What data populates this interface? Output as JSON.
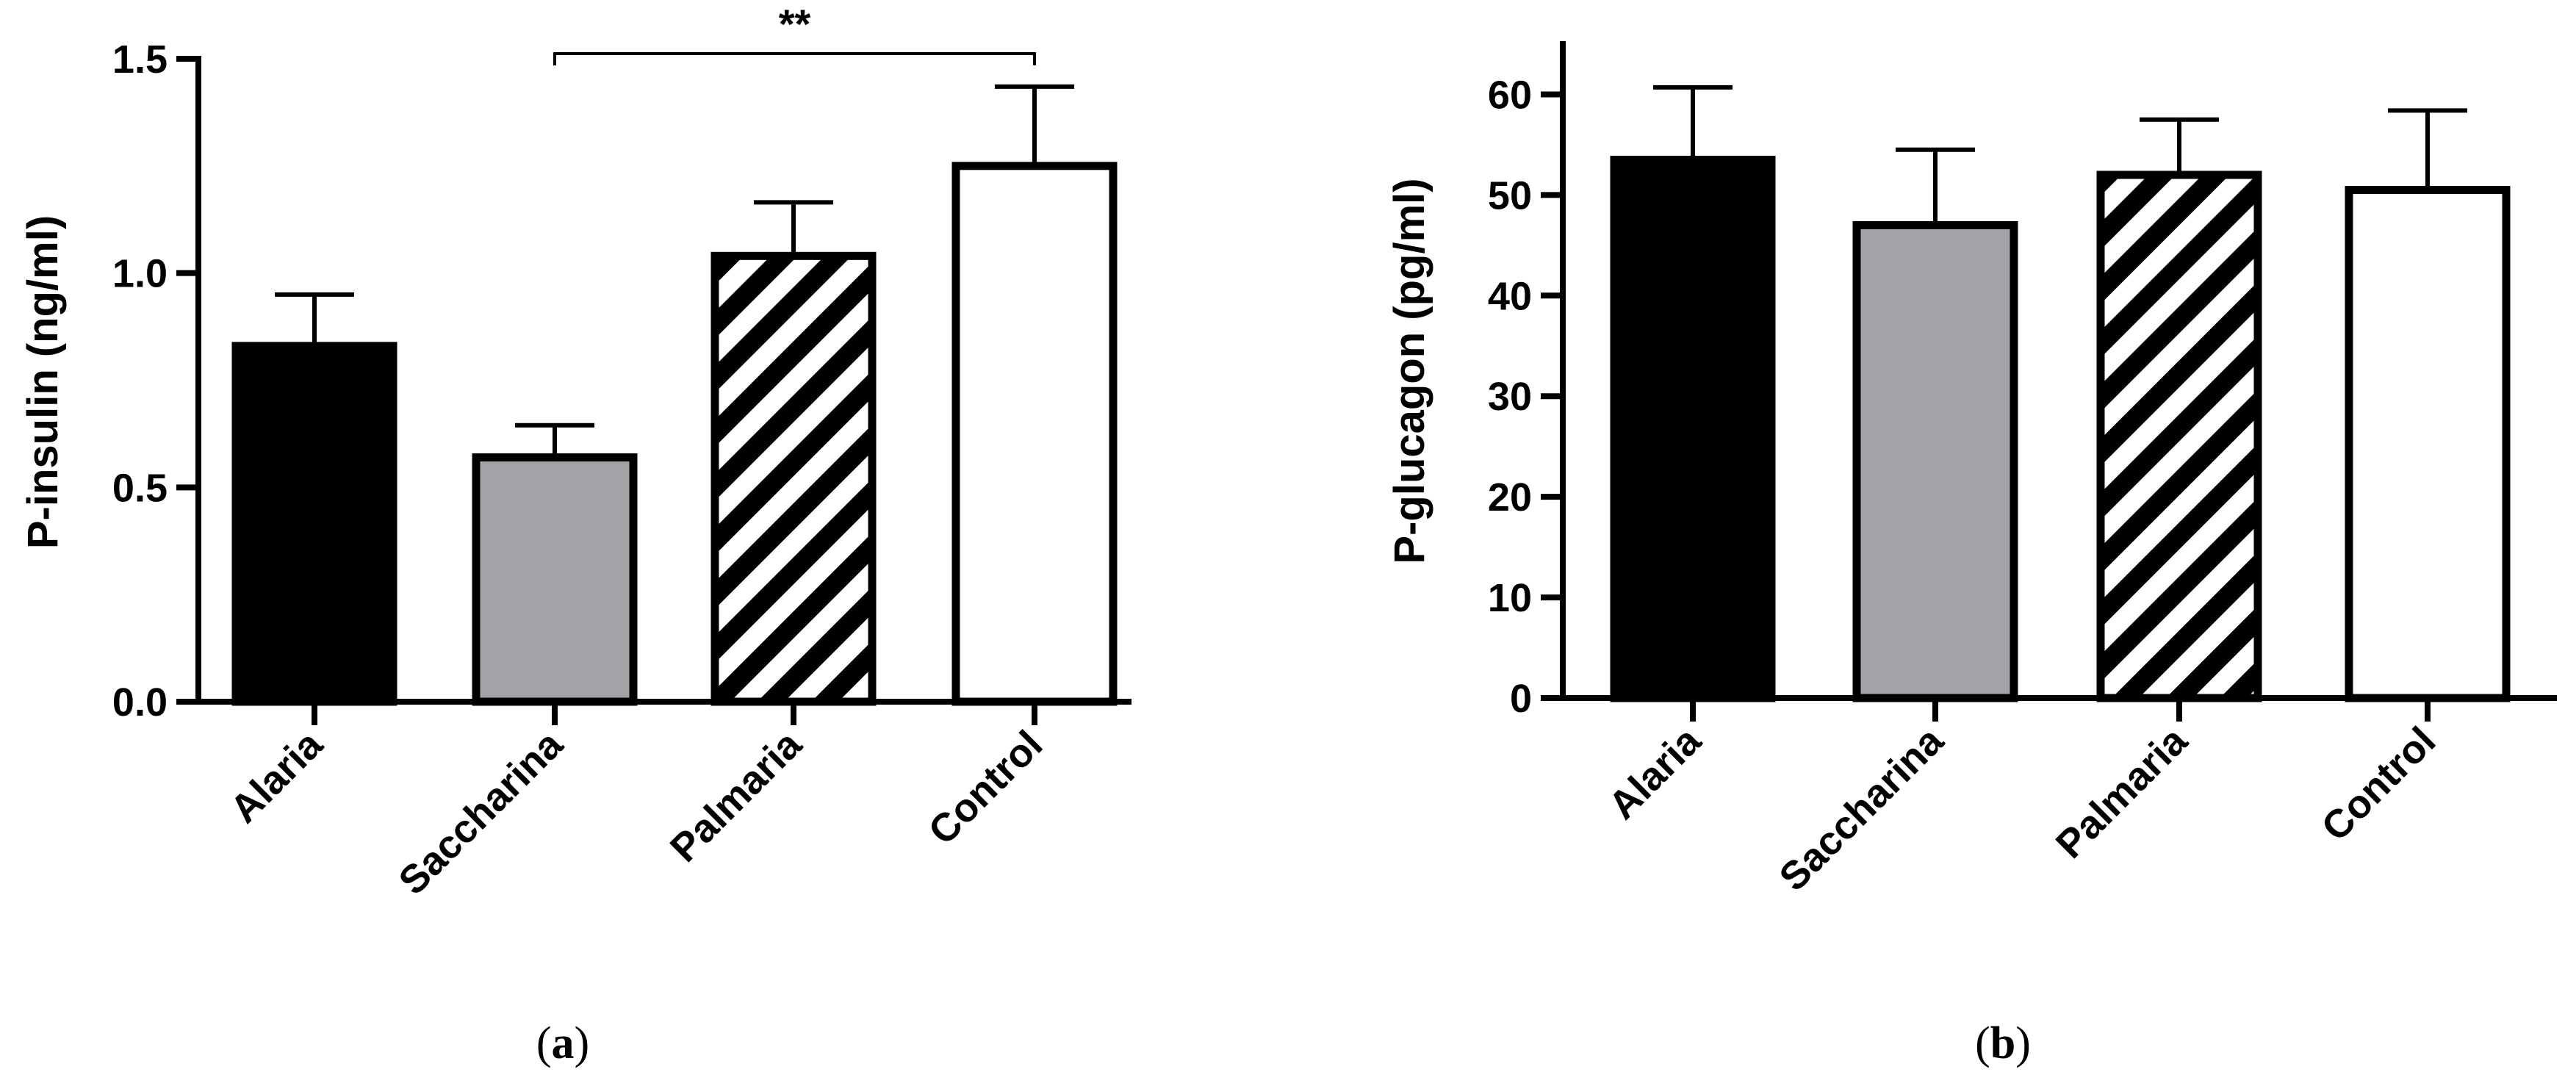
{
  "chart_data": [
    {
      "type": "bar",
      "panel_label": "a",
      "categories": [
        "Alaria",
        "Saccharina",
        "Palmaria",
        "Control"
      ],
      "values": [
        0.83,
        0.57,
        1.04,
        1.25
      ],
      "error_upper": [
        0.95,
        0.645,
        1.165,
        1.435
      ],
      "ylabel": "P-insulin (ng/ml)",
      "ylim": [
        0,
        1.5
      ],
      "yticks": [
        0.0,
        0.5,
        1.0,
        1.5
      ],
      "ytick_labels": [
        "0.0",
        "0.5",
        "1.0",
        "1.5"
      ],
      "fills": [
        "black",
        "gray",
        "hatched",
        "white"
      ],
      "significance": {
        "from": "Saccharina",
        "to": "Control",
        "label": "**"
      }
    },
    {
      "type": "bar",
      "panel_label": "b",
      "categories": [
        "Alaria",
        "Saccharina",
        "Palmaria",
        "Control"
      ],
      "values": [
        53.5,
        47,
        52,
        50.5
      ],
      "error_upper": [
        60.7,
        54.5,
        57.5,
        58.4
      ],
      "ylabel": "P-glucagon (pg/ml)",
      "ylim": [
        0,
        65
      ],
      "yticks": [
        0,
        10,
        20,
        30,
        40,
        50,
        60
      ],
      "ytick_labels": [
        "0",
        "10",
        "20",
        "30",
        "40",
        "50",
        "60"
      ],
      "fills": [
        "black",
        "gray",
        "hatched",
        "white"
      ]
    }
  ],
  "colors": {
    "black": "#000000",
    "gray": "#a3a2a7",
    "white": "#ffffff",
    "hatch": "#000000"
  }
}
